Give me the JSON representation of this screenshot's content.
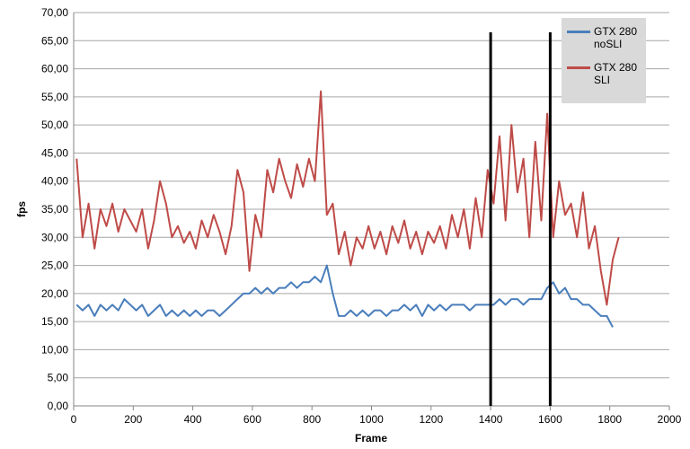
{
  "chart_data": {
    "type": "line",
    "x_label": "Frame",
    "y_label": "fps",
    "xlim": [
      0,
      2000
    ],
    "xticks": [
      0,
      200,
      400,
      600,
      800,
      1000,
      1200,
      1400,
      1600,
      1800,
      2000
    ],
    "ylim": [
      0,
      70
    ],
    "yticks": [
      {
        "value": 0,
        "label": "0,00"
      },
      {
        "value": 5,
        "label": "5,00"
      },
      {
        "value": 10,
        "label": "10,00"
      },
      {
        "value": 15,
        "label": "15,00"
      },
      {
        "value": 20,
        "label": "20,00"
      },
      {
        "value": 25,
        "label": "25,00"
      },
      {
        "value": 30,
        "label": "30,00"
      },
      {
        "value": 35,
        "label": "35,00"
      },
      {
        "value": 40,
        "label": "40,00"
      },
      {
        "value": 45,
        "label": "45,00"
      },
      {
        "value": 50,
        "label": "50,00"
      },
      {
        "value": 55,
        "label": "55,00"
      },
      {
        "value": 60,
        "label": "60,00"
      },
      {
        "value": 65,
        "label": "65,00"
      },
      {
        "value": 70,
        "label": "70,00"
      }
    ],
    "grid": true,
    "vlines": [
      1400,
      1600
    ],
    "x": [
      10,
      30,
      50,
      70,
      90,
      110,
      130,
      150,
      170,
      190,
      210,
      230,
      250,
      270,
      290,
      310,
      330,
      350,
      370,
      390,
      410,
      430,
      450,
      470,
      490,
      510,
      530,
      550,
      570,
      590,
      610,
      630,
      650,
      670,
      690,
      710,
      730,
      750,
      770,
      790,
      810,
      830,
      850,
      870,
      890,
      910,
      930,
      950,
      970,
      990,
      1010,
      1030,
      1050,
      1070,
      1090,
      1110,
      1130,
      1150,
      1170,
      1190,
      1210,
      1230,
      1250,
      1270,
      1290,
      1310,
      1330,
      1350,
      1370,
      1390,
      1410,
      1430,
      1450,
      1470,
      1490,
      1510,
      1530,
      1550,
      1570,
      1590,
      1610,
      1630,
      1650,
      1670,
      1690,
      1710,
      1730,
      1750,
      1770,
      1790,
      1810,
      1830
    ],
    "series": [
      {
        "name": "GTX 280 noSLI",
        "color": "#4a7ebb",
        "values": [
          18,
          17,
          18,
          16,
          18,
          17,
          18,
          17,
          19,
          18,
          17,
          18,
          16,
          17,
          18,
          16,
          17,
          16,
          17,
          16,
          17,
          16,
          17,
          17,
          16,
          17,
          18,
          19,
          20,
          20,
          21,
          20,
          21,
          20,
          21,
          21,
          22,
          21,
          22,
          22,
          23,
          22,
          25,
          20,
          16,
          16,
          17,
          16,
          17,
          16,
          17,
          17,
          16,
          17,
          17,
          18,
          17,
          18,
          16,
          18,
          17,
          18,
          17,
          18,
          18,
          18,
          17,
          18,
          18,
          18,
          18,
          19,
          18,
          19,
          19,
          18,
          19,
          19,
          19,
          21,
          22,
          20,
          21,
          19,
          19,
          18,
          18,
          17,
          16,
          16,
          14,
          null
        ]
      },
      {
        "name": "GTX 280 SLI",
        "color": "#be4b48",
        "values": [
          44,
          30,
          36,
          28,
          35,
          32,
          36,
          31,
          35,
          33,
          31,
          35,
          28,
          33,
          40,
          36,
          30,
          32,
          29,
          31,
          28,
          33,
          30,
          34,
          31,
          27,
          32,
          42,
          38,
          24,
          34,
          30,
          42,
          38,
          44,
          40,
          37,
          43,
          39,
          44,
          40,
          56,
          34,
          36,
          27,
          31,
          25,
          30,
          28,
          32,
          28,
          31,
          27,
          32,
          29,
          33,
          28,
          31,
          27,
          31,
          29,
          32,
          28,
          34,
          30,
          35,
          28,
          37,
          30,
          42,
          36,
          48,
          33,
          50,
          38,
          44,
          30,
          47,
          33,
          52,
          30,
          40,
          34,
          36,
          30,
          38,
          28,
          32,
          24,
          18,
          26,
          30
        ]
      }
    ]
  }
}
